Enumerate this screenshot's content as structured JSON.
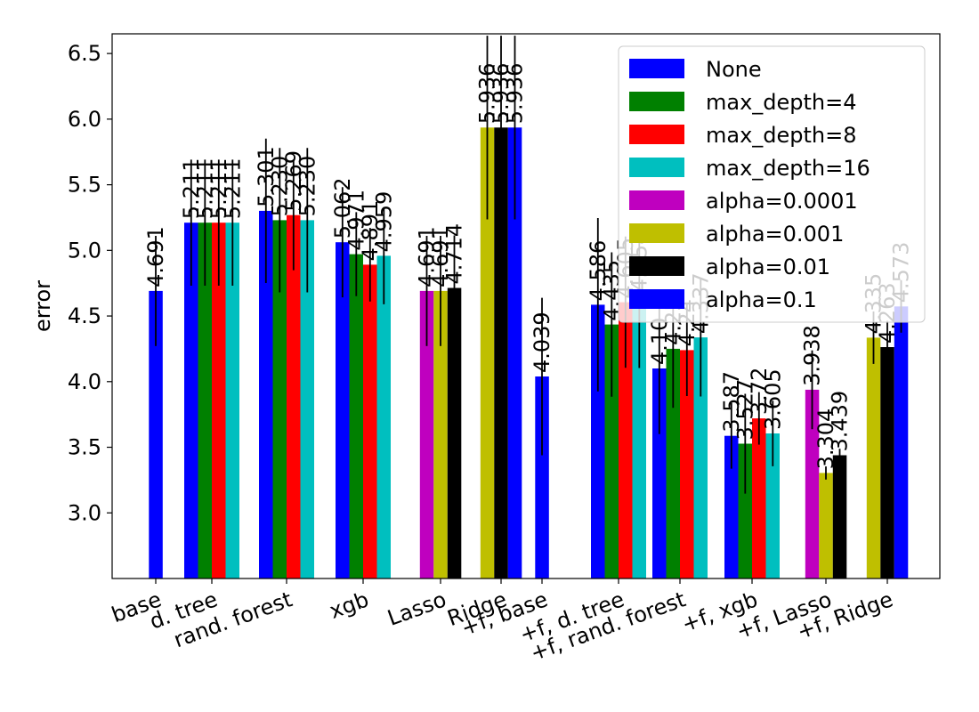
{
  "chart_data": {
    "type": "bar",
    "ylabel": "error",
    "xlabel": "",
    "ylim": [
      2.5,
      6.65
    ],
    "yticks": [
      "3.0",
      "3.5",
      "4.0",
      "4.5",
      "5.0",
      "5.5",
      "6.0",
      "6.5"
    ],
    "legend_position": "top-right",
    "categories": [
      "base",
      "d. tree",
      "rand. forest",
      "xgb",
      "Lasso",
      "Ridge",
      "+f, base",
      "+f, d. tree",
      "+f, rand. forest",
      "+f, xgb",
      "+f, Lasso",
      "+f, Ridge"
    ],
    "series": [
      {
        "name": "None",
        "color": "#0000ff",
        "values": [
          4.691,
          5.211,
          5.301,
          5.062,
          null,
          null,
          4.039,
          4.586,
          4.1,
          3.587,
          null,
          null
        ],
        "errors": [
          0.42,
          0.48,
          0.55,
          0.42,
          null,
          null,
          0.6,
          0.66,
          0.5,
          0.25,
          null,
          null
        ],
        "labels": [
          "4.691",
          "5.211",
          "5.301",
          "5.062",
          null,
          null,
          "4.039",
          "4.586",
          "4.10",
          "3.587",
          null,
          null
        ]
      },
      {
        "name": "max_depth=4",
        "color": "#008000",
        "values": [
          null,
          5.211,
          5.23,
          4.971,
          null,
          null,
          null,
          4.435,
          4.25,
          3.527,
          null,
          null
        ],
        "errors": [
          null,
          0.48,
          0.55,
          0.32,
          null,
          null,
          null,
          0.55,
          0.45,
          0.38,
          null,
          null
        ],
        "labels": [
          null,
          "5.211",
          "5.230",
          "4.971",
          null,
          null,
          null,
          "4.435",
          "4.25",
          "3.527",
          null,
          null
        ]
      },
      {
        "name": "max_depth=8",
        "color": "#ff0000",
        "values": [
          null,
          5.211,
          5.269,
          4.891,
          null,
          null,
          null,
          4.605,
          4.24,
          3.72,
          null,
          null
        ],
        "errors": [
          null,
          0.48,
          0.42,
          0.28,
          null,
          null,
          null,
          0.5,
          0.35,
          0.2,
          null,
          null
        ],
        "labels": [
          null,
          "5.211",
          "5.269",
          "4.891",
          null,
          null,
          null,
          "4.605",
          "4.24",
          "3.72",
          null,
          null
        ]
      },
      {
        "name": "max_depth=16",
        "color": "#00bfbf",
        "values": [
          null,
          5.211,
          5.23,
          4.959,
          null,
          null,
          null,
          4.654,
          4.337,
          3.605,
          null,
          null
        ],
        "errors": [
          null,
          0.48,
          0.55,
          0.37,
          null,
          null,
          null,
          0.55,
          0.45,
          0.25,
          null,
          null
        ],
        "labels": [
          null,
          "5.211",
          "5.230",
          "4.959",
          null,
          null,
          null,
          "4.654",
          "4.337",
          "3.605",
          null,
          null
        ]
      },
      {
        "name": "alpha=0.0001",
        "color": "#bf00bf",
        "values": [
          null,
          null,
          null,
          null,
          4.691,
          null,
          null,
          null,
          null,
          null,
          3.938,
          null
        ],
        "errors": [
          null,
          null,
          null,
          null,
          0.42,
          null,
          null,
          null,
          null,
          null,
          0.3,
          null
        ],
        "labels": [
          null,
          null,
          null,
          null,
          "4.691",
          null,
          null,
          null,
          null,
          null,
          "3.938",
          null
        ]
      },
      {
        "name": "alpha=0.001",
        "color": "#bfbf00",
        "values": [
          null,
          null,
          null,
          null,
          4.691,
          5.936,
          null,
          null,
          null,
          null,
          3.304,
          4.335
        ],
        " errors": null,
        "errors": [
          null,
          null,
          null,
          null,
          0.42,
          0.7,
          null,
          null,
          null,
          null,
          0.05,
          0.2
        ],
        "labels": [
          null,
          null,
          null,
          null,
          "4.691",
          "5.936",
          null,
          null,
          null,
          null,
          "3.304",
          "4.335"
        ]
      },
      {
        "name": "alpha=0.01",
        "color": "#000000",
        "values": [
          null,
          null,
          null,
          null,
          4.714,
          5.936,
          null,
          null,
          null,
          null,
          3.439,
          4.263
        ],
        "errors": [
          null,
          null,
          null,
          null,
          0.4,
          0.7,
          null,
          null,
          null,
          null,
          0.05,
          0.2
        ],
        "labels": [
          null,
          null,
          null,
          null,
          "4.714",
          "5.936",
          null,
          null,
          null,
          null,
          "3.439",
          "4.263"
        ]
      },
      {
        "name": "alpha=0.1",
        "color": "#0000ff",
        "values": [
          null,
          null,
          null,
          null,
          null,
          5.936,
          null,
          null,
          null,
          null,
          null,
          4.573
        ],
        "errors": [
          null,
          null,
          null,
          null,
          null,
          0.7,
          null,
          null,
          null,
          null,
          null,
          0.2
        ],
        "labels": [
          null,
          null,
          null,
          null,
          null,
          "5.936",
          null,
          null,
          null,
          null,
          null,
          "4.573"
        ]
      }
    ]
  }
}
